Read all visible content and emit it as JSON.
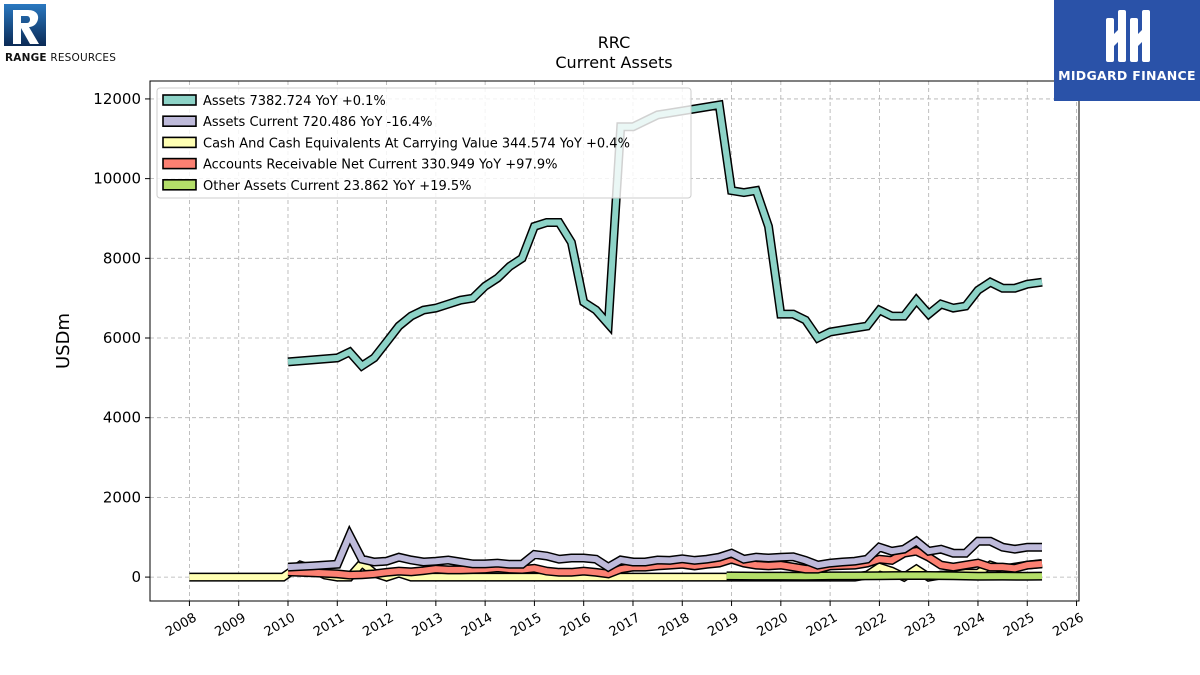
{
  "logos": {
    "left_company": "RANGE RESOURCES",
    "left_company_bold": "RANGE",
    "left_company_rest": " RESOURCES",
    "right_brand": "MIDGARD FINANCE"
  },
  "colors": {
    "assets": "#8dd3c7",
    "assets_current": "#bebada",
    "cash": "#ffffb3",
    "receivables": "#fb8072",
    "other": "#b3de69",
    "outline": "#000000",
    "brand_blue": "#2a52a8",
    "logo_blue": "#1a5aa0"
  },
  "chart_data": {
    "type": "line",
    "title": "RRC",
    "subtitle": "Current  Assets",
    "xlabel": "",
    "ylabel": "USDm",
    "xlim": [
      2007.2,
      2026.05
    ],
    "ylim": [
      -600,
      12450
    ],
    "x_ticks": [
      2008,
      2009,
      2010,
      2011,
      2012,
      2013,
      2014,
      2015,
      2016,
      2017,
      2018,
      2019,
      2020,
      2021,
      2022,
      2023,
      2024,
      2025,
      2026
    ],
    "y_ticks": [
      0,
      2000,
      4000,
      6000,
      8000,
      10000,
      12000
    ],
    "grid": true,
    "legend_position": "top-left",
    "series": [
      {
        "key": "assets",
        "name": "Assets  7382.724 YoY +0.1%",
        "x": [
          2010.0,
          2011.0,
          2011.25,
          2011.5,
          2011.75,
          2012.0,
          2012.25,
          2012.5,
          2012.75,
          2013.0,
          2013.25,
          2013.5,
          2013.75,
          2014.0,
          2014.25,
          2014.5,
          2014.75,
          2015.0,
          2015.25,
          2015.5,
          2015.75,
          2016.0,
          2016.25,
          2016.5,
          2016.75,
          2017.0,
          2017.25,
          2017.5,
          2017.75,
          2018.0,
          2018.25,
          2018.5,
          2018.75,
          2019.0,
          2019.25,
          2019.5,
          2019.75,
          2020.0,
          2020.25,
          2020.5,
          2020.75,
          2021.0,
          2021.25,
          2021.5,
          2021.75,
          2022.0,
          2022.25,
          2022.5,
          2022.75,
          2023.0,
          2023.25,
          2023.5,
          2023.75,
          2024.0,
          2024.25,
          2024.5,
          2024.75,
          2025.0,
          2025.3
        ],
        "y": [
          5400,
          5500,
          5650,
          5300,
          5500,
          5900,
          6300,
          6550,
          6700,
          6750,
          6850,
          6950,
          7000,
          7300,
          7500,
          7800,
          8000,
          8800,
          8900,
          8900,
          8400,
          6900,
          6700,
          6350,
          11300,
          11300,
          11450,
          11600,
          11650,
          11700,
          11750,
          11800,
          11850,
          9700,
          9650,
          9700,
          8800,
          6600,
          6600,
          6450,
          6000,
          6150,
          6200,
          6250,
          6300,
          6700,
          6550,
          6550,
          6950,
          6600,
          6850,
          6750,
          6800,
          7200,
          7400,
          7250,
          7250,
          7350,
          7400
        ]
      },
      {
        "key": "assets_current",
        "name": "Assets Current  720.486 YoY -16.4%",
        "x": [
          2010.0,
          2010.5,
          2011.0,
          2011.25,
          2011.5,
          2011.75,
          2012.0,
          2012.25,
          2012.5,
          2012.75,
          2013.0,
          2013.25,
          2013.5,
          2013.75,
          2014.0,
          2014.25,
          2014.5,
          2014.75,
          2015.0,
          2015.25,
          2015.5,
          2015.75,
          2016.0,
          2016.25,
          2016.5,
          2016.75,
          2017.0,
          2017.25,
          2017.5,
          2017.75,
          2018.0,
          2018.25,
          2018.5,
          2018.75,
          2019.0,
          2019.25,
          2019.5,
          2019.75,
          2020.0,
          2020.25,
          2020.5,
          2020.75,
          2021.0,
          2021.25,
          2021.5,
          2021.75,
          2022.0,
          2022.25,
          2022.5,
          2022.75,
          2023.0,
          2023.25,
          2023.5,
          2023.75,
          2024.0,
          2024.25,
          2024.5,
          2024.75,
          2025.0,
          2025.3
        ],
        "y": [
          250,
          280,
          320,
          1050,
          450,
          380,
          400,
          500,
          430,
          380,
          400,
          430,
          380,
          330,
          330,
          350,
          320,
          320,
          570,
          530,
          450,
          480,
          480,
          450,
          250,
          430,
          380,
          380,
          430,
          420,
          460,
          420,
          450,
          500,
          600,
          450,
          500,
          480,
          500,
          510,
          420,
          300,
          350,
          380,
          400,
          450,
          750,
          650,
          700,
          900,
          650,
          700,
          600,
          600,
          900,
          900,
          750,
          700,
          750,
          750
        ]
      },
      {
        "key": "cash",
        "name": "Cash And Cash Equivalents At Carrying Value  344.574 YoY +0.4%",
        "x": [
          2008.0,
          2009.9,
          2010.25,
          2010.5,
          2010.75,
          2011.0,
          2011.25,
          2011.5,
          2011.75,
          2012.0,
          2012.25,
          2012.5,
          2012.75,
          2013.0,
          2013.25,
          2013.5,
          2014.0,
          2014.5,
          2015.0,
          2015.5,
          2016.0,
          2016.5,
          2017.0,
          2018.0,
          2018.9,
          2019.25,
          2019.5,
          2020.0,
          2020.5,
          2021.0,
          2021.5,
          2021.75,
          2022.0,
          2022.25,
          2022.5,
          2022.75,
          2023.0,
          2023.25,
          2023.5,
          2023.75,
          2024.0,
          2024.25,
          2024.5,
          2024.75,
          2025.0,
          2025.3
        ],
        "y": [
          0,
          0,
          300,
          200,
          50,
          0,
          0,
          350,
          100,
          0,
          100,
          0,
          0,
          0,
          0,
          0,
          0,
          0,
          0,
          0,
          0,
          0,
          0,
          0,
          0,
          0,
          0,
          0,
          0,
          0,
          0,
          50,
          250,
          150,
          0,
          200,
          0,
          50,
          50,
          100,
          100,
          300,
          200,
          250,
          300,
          340
        ]
      },
      {
        "key": "receivables",
        "name": "Accounts Receivable Net Current  330.949 YoY +97.9%",
        "x": [
          2010.0,
          2010.5,
          2011.0,
          2011.25,
          2011.5,
          2011.75,
          2012.0,
          2012.25,
          2012.5,
          2012.75,
          2013.0,
          2013.25,
          2013.5,
          2013.75,
          2014.0,
          2014.25,
          2014.5,
          2014.75,
          2015.0,
          2015.25,
          2015.5,
          2015.75,
          2016.0,
          2016.25,
          2016.5,
          2016.75,
          2017.0,
          2017.25,
          2017.5,
          2017.75,
          2018.0,
          2018.25,
          2018.5,
          2018.75,
          2019.0,
          2019.25,
          2019.5,
          2019.75,
          2020.0,
          2020.25,
          2020.5,
          2020.75,
          2021.0,
          2021.25,
          2021.5,
          2021.75,
          2022.0,
          2022.25,
          2022.5,
          2022.75,
          2023.0,
          2023.25,
          2023.5,
          2023.75,
          2024.0,
          2024.25,
          2024.5,
          2024.75,
          2025.0,
          2025.3
        ],
        "y": [
          130,
          110,
          80,
          50,
          60,
          80,
          120,
          150,
          130,
          160,
          200,
          180,
          180,
          190,
          200,
          230,
          200,
          190,
          220,
          150,
          120,
          120,
          150,
          120,
          80,
          200,
          250,
          250,
          280,
          300,
          320,
          280,
          320,
          350,
          450,
          350,
          300,
          280,
          300,
          250,
          200,
          200,
          280,
          290,
          300,
          350,
          450,
          420,
          600,
          650,
          500,
          300,
          250,
          300,
          350,
          250,
          250,
          220,
          300,
          330
        ]
      },
      {
        "key": "other",
        "name": "Other Assets Current  23.862 YoY +19.5%",
        "x": [
          2018.9,
          2019.5,
          2020.0,
          2020.5,
          2021.0,
          2021.5,
          2022.0,
          2022.5,
          2023.0,
          2023.5,
          2024.0,
          2024.5,
          2025.0,
          2025.3
        ],
        "y": [
          30,
          25,
          25,
          20,
          30,
          30,
          35,
          40,
          40,
          35,
          20,
          25,
          20,
          24
        ]
      }
    ]
  }
}
